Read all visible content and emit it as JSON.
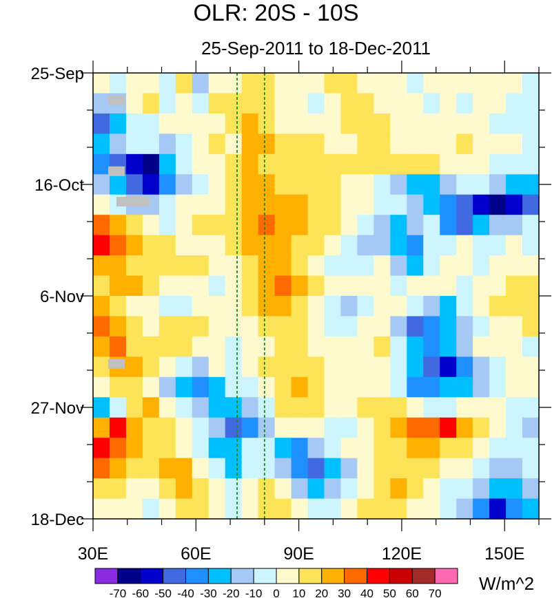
{
  "chart_data": {
    "type": "heatmap",
    "title": "OLR: 20S - 10S",
    "subtitle": "25-Sep-2011 to 18-Dec-2011",
    "x_ticks": [
      {
        "value": 30,
        "label": "30E"
      },
      {
        "value": 60,
        "label": "60E"
      },
      {
        "value": 90,
        "label": "90E"
      },
      {
        "value": 120,
        "label": "120E"
      },
      {
        "value": 150,
        "label": "150E"
      }
    ],
    "xlim": [
      30,
      160
    ],
    "y_ticks": [
      {
        "day": 0,
        "label": "25-Sep"
      },
      {
        "day": 21,
        "label": "16-Oct"
      },
      {
        "day": 42,
        "label": "6-Nov"
      },
      {
        "day": 63,
        "label": "27-Nov"
      },
      {
        "day": 84,
        "label": "18-Dec"
      }
    ],
    "ylim_days": [
      0,
      84
    ],
    "reference_lines_lon": [
      72,
      80
    ],
    "colorbar": {
      "unit": "W/m^2",
      "levels": [
        -70,
        -60,
        -50,
        -40,
        -30,
        -20,
        -10,
        0,
        10,
        20,
        30,
        40,
        50,
        60,
        70
      ],
      "colors": [
        "#8a2be2",
        "#00008b",
        "#0000cd",
        "#4169e1",
        "#1e90ff",
        "#00bfff",
        "#a6c8f5",
        "#cdf5ff",
        "#fffacd",
        "#fce357",
        "#ffb000",
        "#ff6a00",
        "#ff0000",
        "#cc0000",
        "#a52a2a",
        "#ff69b4"
      ]
    },
    "grid": [
      [
        0,
        -1,
        0,
        0,
        -1,
        1,
        -2,
        0,
        0,
        1,
        1,
        0,
        0,
        0,
        1,
        1,
        0,
        0,
        0,
        -1,
        0,
        0,
        0,
        0,
        0,
        0,
        -1
      ],
      [
        -2,
        -2,
        0,
        1,
        -1,
        0,
        -1,
        1,
        1,
        1,
        1,
        0,
        0,
        -1,
        0,
        1,
        1,
        0,
        0,
        0,
        -1,
        0,
        -1,
        0,
        0,
        -1,
        -1
      ],
      [
        -5,
        -3,
        -1,
        -1,
        0,
        0,
        0,
        0,
        1,
        2,
        1,
        0,
        0,
        0,
        0,
        1,
        1,
        1,
        0,
        0,
        0,
        0,
        0,
        0,
        -1,
        -1,
        -1
      ],
      [
        -3,
        -2,
        -1,
        -1,
        -2,
        -1,
        0,
        1,
        0,
        2,
        2,
        1,
        1,
        1,
        0,
        0,
        1,
        1,
        0,
        0,
        0,
        0,
        1,
        0,
        0,
        0,
        -1
      ],
      [
        -4,
        -5,
        -6,
        -7,
        -3,
        -1,
        0,
        0,
        1,
        2,
        1,
        1,
        1,
        1,
        1,
        1,
        1,
        1,
        1,
        1,
        1,
        0,
        0,
        0,
        -1,
        -1,
        -1
      ],
      [
        -2,
        -3,
        -5,
        -6,
        -4,
        -2,
        -1,
        0,
        1,
        2,
        2,
        1,
        1,
        1,
        1,
        0,
        0,
        -1,
        -2,
        -3,
        -3,
        -2,
        -1,
        -1,
        -2,
        -3,
        -3
      ],
      [
        0,
        -1,
        -2,
        -2,
        -1,
        0,
        0,
        0,
        1,
        2,
        2,
        2,
        2,
        1,
        1,
        0,
        0,
        -1,
        -1,
        -2,
        -3,
        -4,
        -5,
        -6,
        -7,
        -6,
        -5
      ],
      [
        3,
        2,
        1,
        0,
        -1,
        0,
        1,
        1,
        1,
        2,
        3,
        2,
        2,
        1,
        1,
        0,
        -1,
        -2,
        -3,
        -2,
        -1,
        -4,
        -5,
        -3,
        -2,
        -2,
        -1
      ],
      [
        4,
        3,
        2,
        1,
        1,
        0,
        0,
        0,
        1,
        2,
        2,
        2,
        1,
        1,
        0,
        -1,
        -2,
        -2,
        -3,
        -4,
        -1,
        -1,
        0,
        -1,
        -1,
        0,
        -1
      ],
      [
        2,
        2,
        1,
        1,
        1,
        1,
        1,
        0,
        0,
        1,
        2,
        2,
        1,
        0,
        -1,
        -1,
        -1,
        0,
        -2,
        -3,
        -1,
        0,
        0,
        -1,
        0,
        0,
        0
      ],
      [
        1,
        2,
        2,
        1,
        0,
        0,
        0,
        -1,
        0,
        1,
        2,
        3,
        2,
        1,
        0,
        0,
        0,
        0,
        -1,
        0,
        0,
        0,
        -1,
        0,
        0,
        1,
        1
      ],
      [
        2,
        1,
        0,
        0,
        -1,
        -1,
        0,
        0,
        0,
        1,
        2,
        2,
        1,
        0,
        -1,
        -2,
        -1,
        0,
        0,
        -1,
        -2,
        -3,
        -1,
        0,
        1,
        1,
        1
      ],
      [
        3,
        2,
        1,
        0,
        1,
        1,
        1,
        0,
        0,
        0,
        1,
        1,
        1,
        0,
        -1,
        -1,
        0,
        0,
        -2,
        -5,
        -4,
        -3,
        -2,
        -1,
        0,
        0,
        1
      ],
      [
        2,
        3,
        1,
        1,
        1,
        1,
        0,
        0,
        -1,
        0,
        0,
        1,
        1,
        0,
        0,
        0,
        0,
        1,
        -1,
        -3,
        -4,
        -3,
        -2,
        0,
        0,
        0,
        -1
      ],
      [
        1,
        2,
        2,
        1,
        0,
        -1,
        -2,
        0,
        -1,
        0,
        1,
        1,
        1,
        1,
        0,
        0,
        0,
        0,
        -1,
        -3,
        -5,
        -6,
        -4,
        -2,
        -1,
        0,
        0
      ],
      [
        0,
        1,
        1,
        0,
        -2,
        -3,
        -4,
        -3,
        -1,
        -1,
        0,
        1,
        2,
        1,
        0,
        0,
        0,
        0,
        -1,
        -4,
        -4,
        -3,
        -3,
        -2,
        -1,
        0,
        0
      ],
      [
        -3,
        -1,
        1,
        2,
        0,
        -1,
        -2,
        -3,
        -3,
        -2,
        -1,
        1,
        1,
        1,
        0,
        0,
        1,
        1,
        1,
        0,
        -1,
        -1,
        0,
        0,
        0,
        -1,
        -1
      ],
      [
        2,
        4,
        2,
        1,
        1,
        0,
        -1,
        -2,
        -5,
        -4,
        -2,
        0,
        0,
        0,
        -1,
        -1,
        0,
        1,
        2,
        3,
        3,
        4,
        2,
        1,
        0,
        -1,
        -2
      ],
      [
        4,
        3,
        2,
        1,
        1,
        0,
        -1,
        -3,
        -3,
        -1,
        -1,
        -3,
        -4,
        -2,
        -1,
        0,
        0,
        1,
        1,
        2,
        2,
        1,
        1,
        0,
        -1,
        -1,
        -1
      ],
      [
        3,
        2,
        1,
        1,
        2,
        2,
        0,
        -1,
        -3,
        -1,
        -1,
        -2,
        -4,
        -5,
        -3,
        -2,
        0,
        1,
        1,
        1,
        1,
        0,
        0,
        -1,
        -2,
        -2,
        -1
      ],
      [
        1,
        1,
        0,
        0,
        1,
        2,
        1,
        0,
        -1,
        0,
        1,
        0,
        -2,
        -3,
        -2,
        -1,
        0,
        1,
        2,
        1,
        0,
        -1,
        -1,
        -2,
        -3,
        -3,
        -2
      ],
      [
        0,
        0,
        0,
        -1,
        0,
        1,
        1,
        0,
        -1,
        0,
        1,
        1,
        0,
        -1,
        -1,
        0,
        1,
        1,
        1,
        0,
        0,
        -1,
        -2,
        -4,
        -6,
        -4,
        -3
      ]
    ]
  },
  "missing_cells": [
    [
      1,
      1
    ],
    [
      8,
      1
    ],
    [
      11,
      2
    ],
    [
      11,
      3
    ],
    [
      11,
      4
    ],
    [
      27,
      1
    ]
  ]
}
